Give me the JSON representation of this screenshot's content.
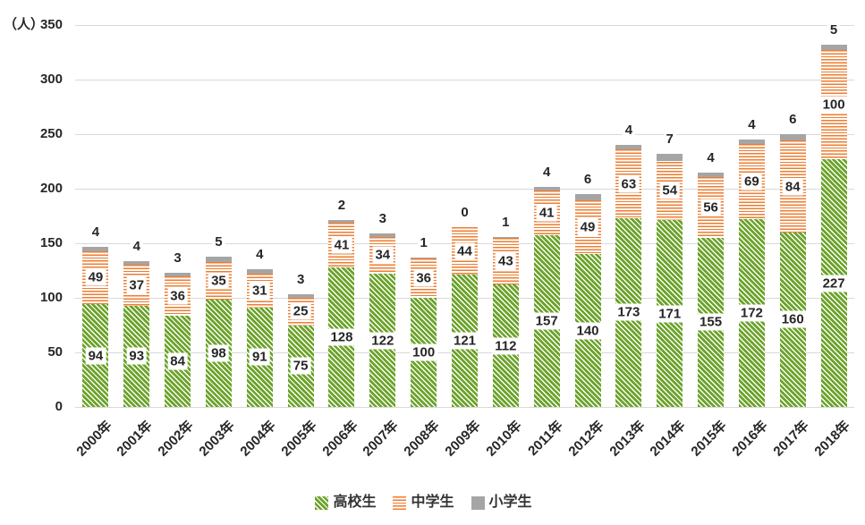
{
  "chart_data": {
    "type": "bar",
    "stacked": true,
    "unit_label": "（人）",
    "categories": [
      "2000年",
      "2001年",
      "2002年",
      "2003年",
      "2004年",
      "2005年",
      "2006年",
      "2007年",
      "2008年",
      "2009年",
      "2010年",
      "2011年",
      "2012年",
      "2013年",
      "2014年",
      "2015年",
      "2016年",
      "2017年",
      "2018年"
    ],
    "series": [
      {
        "name": "高校生",
        "key": "highschool",
        "pattern": "diagonal-stripes",
        "color": "#6CA32A",
        "values": [
          94,
          93,
          84,
          98,
          91,
          75,
          128,
          122,
          100,
          121,
          112,
          157,
          140,
          173,
          171,
          155,
          172,
          160,
          227
        ]
      },
      {
        "name": "中学生",
        "key": "middleschool",
        "pattern": "horizontal-stripes",
        "color": "#ED7D31",
        "values": [
          49,
          37,
          36,
          35,
          31,
          25,
          41,
          34,
          36,
          44,
          43,
          41,
          49,
          63,
          54,
          56,
          69,
          84,
          100
        ]
      },
      {
        "name": "小学生",
        "key": "elementary",
        "pattern": "solid",
        "color": "#A5A5A5",
        "values": [
          4,
          4,
          3,
          5,
          4,
          3,
          2,
          3,
          1,
          0,
          1,
          4,
          6,
          4,
          7,
          4,
          4,
          6,
          5
        ]
      }
    ],
    "ylim": [
      0,
      350
    ],
    "ytick_interval": 50,
    "yticks": [
      0,
      50,
      100,
      150,
      200,
      250,
      300,
      350
    ],
    "grid": true,
    "legend_position": "bottom",
    "gridline_color": "#D9D9D9",
    "label_color": "#262626"
  }
}
